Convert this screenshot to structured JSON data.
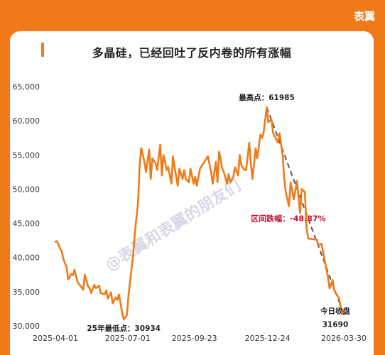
{
  "brand": "表翼",
  "watermark": "@表翼和表翼的朋友们",
  "chart_data": {
    "type": "line",
    "title": "多晶硅，已经回吐了反内卷的所有涨幅",
    "line_color": "#F07A18",
    "trend_color": "#555555",
    "ylim": [
      30000,
      65000
    ],
    "y_ticks": [
      30000,
      35000,
      40000,
      45000,
      50000,
      55000,
      60000,
      65000
    ],
    "y_tick_labels": [
      "30,000",
      "35,000",
      "40,000",
      "45,000",
      "50,000",
      "55,000",
      "60,000",
      "65,000"
    ],
    "x_tick_labels": [
      "2025-04-01",
      "2025-07-01",
      "2025-09-23",
      "2025-12-24",
      "2026-03-30"
    ],
    "x": [
      "2025-04-01",
      "2025-04-03",
      "2025-04-07",
      "2025-04-09",
      "2025-04-11",
      "2025-04-15",
      "2025-04-17",
      "2025-04-21",
      "2025-04-23",
      "2025-04-25",
      "2025-04-29",
      "2025-05-06",
      "2025-05-08",
      "2025-05-12",
      "2025-05-14",
      "2025-05-16",
      "2025-05-20",
      "2025-05-22",
      "2025-05-26",
      "2025-05-28",
      "2025-06-02",
      "2025-06-04",
      "2025-06-06",
      "2025-06-10",
      "2025-06-12",
      "2025-06-16",
      "2025-06-18",
      "2025-06-20",
      "2025-06-24",
      "2025-06-26",
      "2025-06-30",
      "2025-07-02",
      "2025-07-04",
      "2025-07-08",
      "2025-07-10",
      "2025-07-14",
      "2025-07-16",
      "2025-07-18",
      "2025-07-22",
      "2025-07-24",
      "2025-07-28",
      "2025-07-30",
      "2025-08-01",
      "2025-08-05",
      "2025-08-07",
      "2025-08-11",
      "2025-08-13",
      "2025-08-15",
      "2025-08-19",
      "2025-08-21",
      "2025-08-25",
      "2025-08-27",
      "2025-08-29",
      "2025-09-02",
      "2025-09-04",
      "2025-09-08",
      "2025-09-10",
      "2025-09-12",
      "2025-09-16",
      "2025-09-18",
      "2025-09-22",
      "2025-09-24",
      "2025-09-26",
      "2025-09-30",
      "2025-10-10",
      "2025-10-14",
      "2025-10-16",
      "2025-10-20",
      "2025-10-22",
      "2025-10-24",
      "2025-10-28",
      "2025-10-30",
      "2025-11-03",
      "2025-11-05",
      "2025-11-07",
      "2025-11-11",
      "2025-11-13",
      "2025-11-17",
      "2025-11-19",
      "2025-11-21",
      "2025-11-25",
      "2025-11-27",
      "2025-12-01",
      "2025-12-03",
      "2025-12-05",
      "2025-12-09",
      "2025-12-11",
      "2025-12-15",
      "2025-12-17",
      "2025-12-19",
      "2025-12-23",
      "2025-12-25",
      "2025-12-29",
      "2025-12-31",
      "2026-01-06",
      "2026-01-08",
      "2026-01-12",
      "2026-01-14",
      "2026-01-16",
      "2026-01-20",
      "2026-01-22",
      "2026-01-26",
      "2026-01-28",
      "2026-01-30",
      "2026-02-03",
      "2026-02-05",
      "2026-02-09",
      "2026-02-11",
      "2026-02-13",
      "2026-02-24",
      "2026-02-26",
      "2026-03-02",
      "2026-03-04",
      "2026-03-06",
      "2026-03-10",
      "2026-03-12",
      "2026-03-16",
      "2026-03-18",
      "2026-03-20",
      "2026-03-24",
      "2026-03-26",
      "2026-03-30"
    ],
    "values": [
      42300,
      42400,
      41300,
      40900,
      39800,
      38600,
      36800,
      37600,
      37400,
      38200,
      36400,
      35300,
      37500,
      35800,
      35500,
      34800,
      36000,
      35500,
      35900,
      34800,
      34600,
      35200,
      34000,
      34900,
      33300,
      34200,
      33800,
      34600,
      31900,
      30934,
      31600,
      34500,
      36500,
      40500,
      43600,
      48000,
      53500,
      56000,
      54000,
      52500,
      55800,
      51500,
      54500,
      53800,
      52800,
      56500,
      52000,
      55000,
      52800,
      53200,
      50800,
      54800,
      53200,
      50500,
      53000,
      51500,
      52800,
      51500,
      51000,
      53000,
      50800,
      51800,
      50500,
      53000,
      54800,
      52500,
      50800,
      54000,
      51000,
      55500,
      53000,
      52500,
      50800,
      52200,
      51000,
      51800,
      53200,
      52000,
      55000,
      53500,
      52800,
      52800,
      56800,
      53800,
      51500,
      56000,
      54500,
      58000,
      57500,
      58200,
      61985,
      59800,
      60200,
      58200,
      56800,
      58200,
      55000,
      51500,
      49500,
      47500,
      51000,
      48500,
      49800,
      51200,
      46500,
      50000,
      49600,
      44500,
      42800,
      42600,
      41800,
      42000,
      40800,
      39500,
      37200,
      35500,
      36700,
      35200,
      34800,
      34000,
      32800,
      31690
    ],
    "annotations": {
      "max": {
        "label": "最高点：61985",
        "date": "2025-12-23",
        "value": 61985
      },
      "min": {
        "label": "25年最低点：30934",
        "date": "2025-06-26",
        "value": 30934
      },
      "change": {
        "label": "区间跌幅：-48.87%"
      },
      "close": {
        "label": "今日收盘",
        "value_label": "31690",
        "date": "2026-03-30",
        "value": 31690
      }
    }
  }
}
